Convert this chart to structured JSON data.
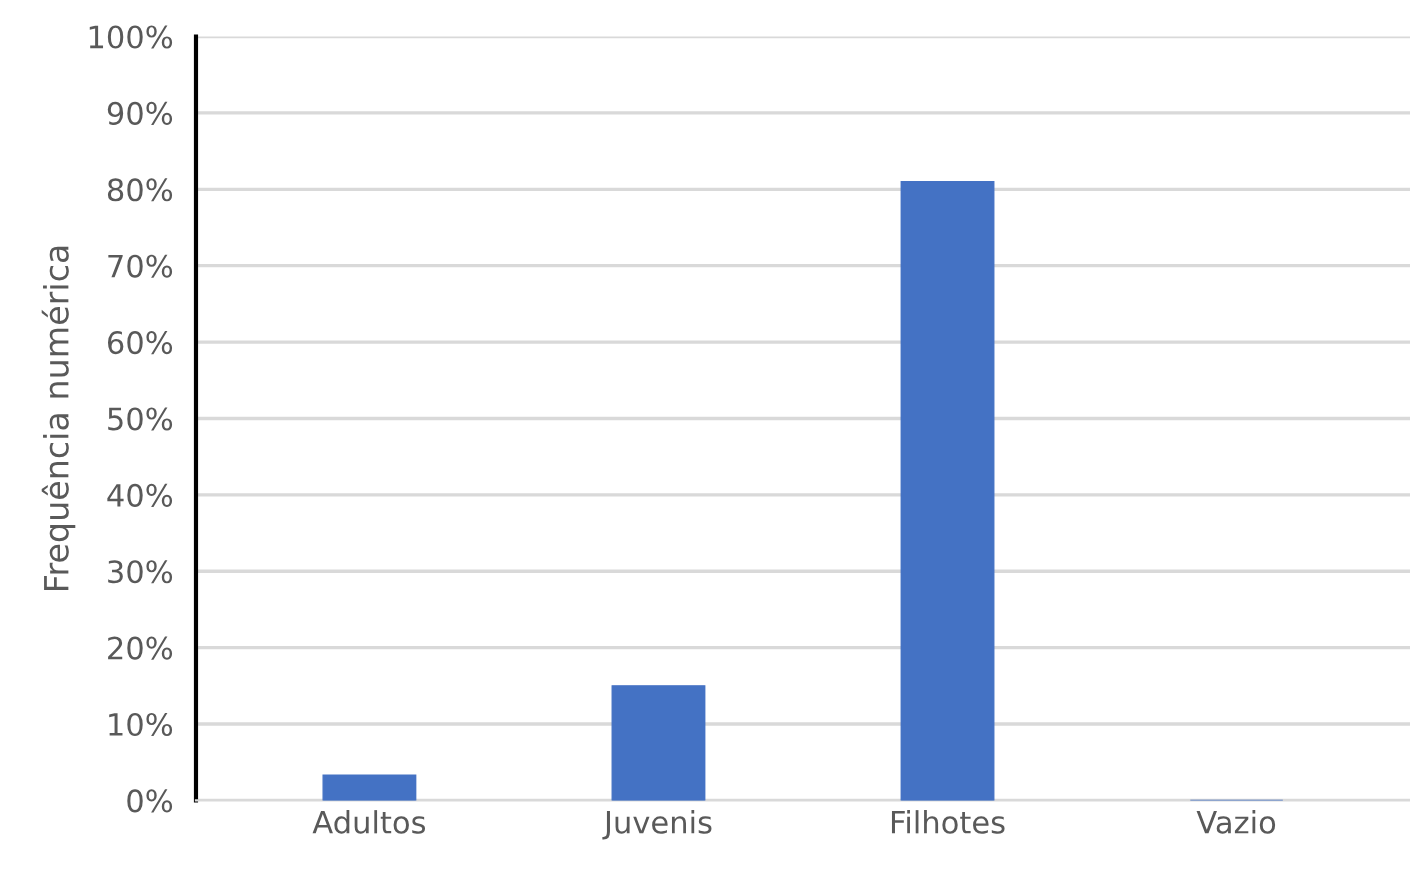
{
  "chart_data": {
    "type": "bar",
    "ylabel": "Frequência numérica",
    "categories": [
      "Adultos",
      "Juvenis",
      "Filhotes",
      "Vazio"
    ],
    "values": [
      3.3,
      15,
      81,
      0
    ],
    "color": "#4472c4",
    "ylim": [
      0,
      100
    ],
    "yticks": [
      {
        "value": 0,
        "label": "0%"
      },
      {
        "value": 10,
        "label": "10%"
      },
      {
        "value": 20,
        "label": "20%"
      },
      {
        "value": 30,
        "label": "30%"
      },
      {
        "value": 40,
        "label": "40%"
      },
      {
        "value": 50,
        "label": "50%"
      },
      {
        "value": 60,
        "label": "60%"
      },
      {
        "value": 70,
        "label": "70%"
      },
      {
        "value": 80,
        "label": "80%"
      },
      {
        "value": 90,
        "label": "90%"
      },
      {
        "value": 100,
        "label": "100%"
      }
    ],
    "grid": "y"
  }
}
